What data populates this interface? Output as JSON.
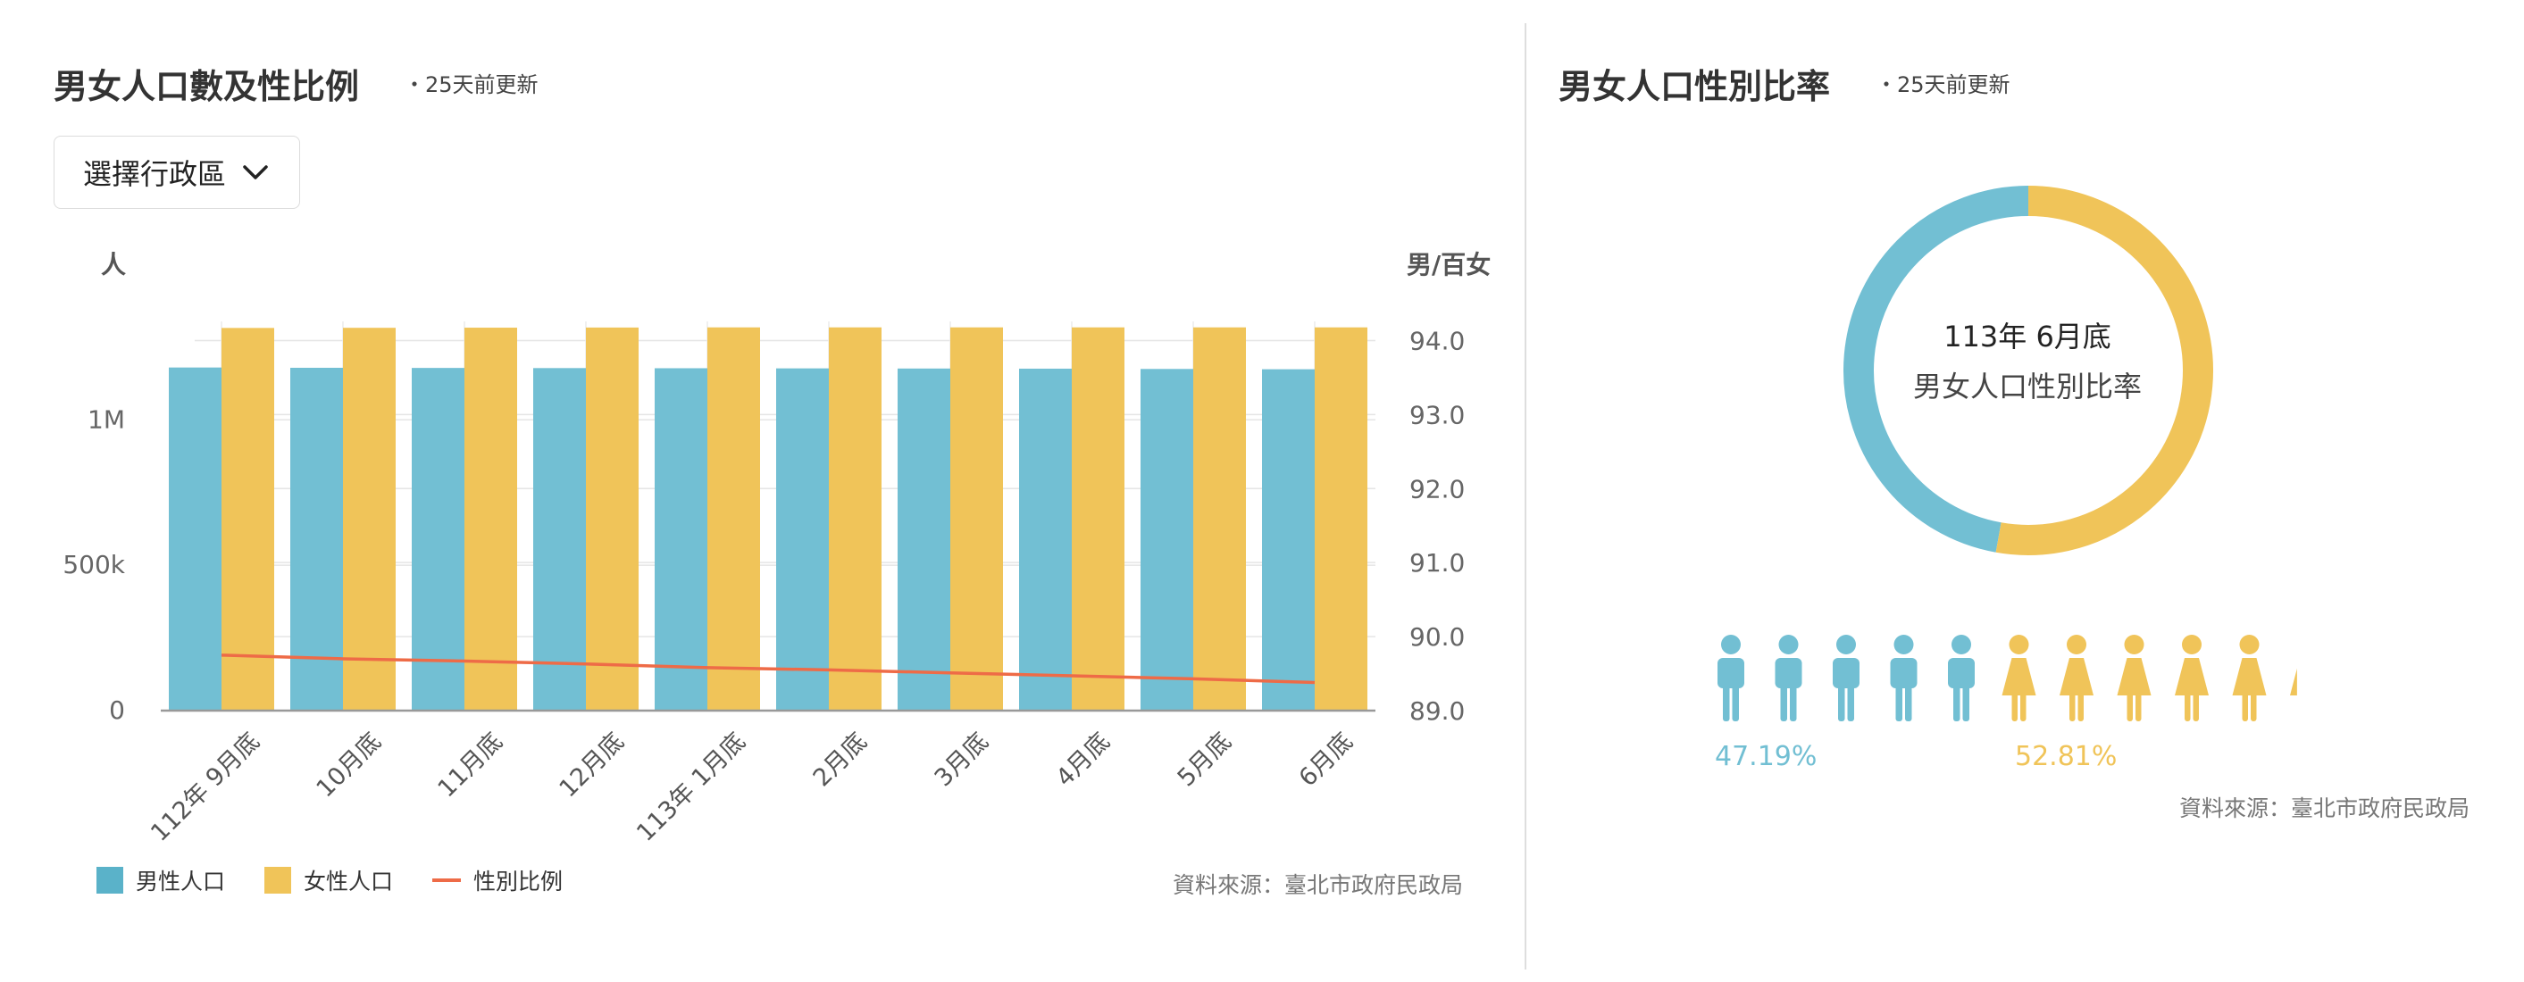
{
  "left_panel": {
    "title": "男女人口數及性比例",
    "updated": "・25天前更新",
    "district_select": {
      "label": "選擇行政區"
    },
    "left_axis_unit": "人",
    "right_axis_unit": "男/百女",
    "legend": {
      "male": "男性人口",
      "female": "女性人口",
      "ratio": "性別比例"
    },
    "source": "資料來源：臺北市政府民政局"
  },
  "right_panel": {
    "title": "男女人口性別比率",
    "updated": "・25天前更新",
    "center_line1": "113年 6月底",
    "center_line2": "男女人口性別比率",
    "male_percent_text": "47.19%",
    "female_percent_text": "52.81%",
    "source": "資料來源：臺北市政府民政局"
  },
  "colors": {
    "male": "#72bfd3",
    "female": "#f0c459",
    "ratio_line": "#ee6b47"
  },
  "chart_data": [
    {
      "type": "bar",
      "categories": [
        "112年 9月底",
        "10月底",
        "11月底",
        "12月底",
        "113年 1月底",
        "2月底",
        "3月底",
        "4月底",
        "5月底",
        "6月底"
      ],
      "series": [
        {
          "name": "男性人口",
          "type": "bar",
          "axis": "left",
          "values": [
            1180000,
            1179000,
            1178500,
            1178000,
            1177500,
            1177000,
            1176500,
            1176000,
            1175000,
            1174000
          ]
        },
        {
          "name": "女性人口",
          "type": "bar",
          "axis": "left",
          "values": [
            1316000,
            1316500,
            1317000,
            1317500,
            1318000,
            1318000,
            1318000,
            1318000,
            1318000,
            1318000
          ]
        },
        {
          "name": "性別比例",
          "type": "line",
          "axis": "right",
          "values": [
            89.75,
            89.7,
            89.67,
            89.63,
            89.58,
            89.55,
            89.51,
            89.47,
            89.43,
            89.38
          ]
        }
      ],
      "left_axis": {
        "unit": "人",
        "ticks": [
          0,
          500000,
          1000000
        ],
        "tick_labels": [
          "0",
          "500k",
          "1M"
        ],
        "ylim": [
          0,
          1400000
        ]
      },
      "right_axis": {
        "unit": "男/百女",
        "ticks": [
          89.0,
          90.0,
          91.0,
          92.0,
          93.0,
          94.0
        ],
        "tick_labels": [
          "89.0",
          "90.0",
          "91.0",
          "92.0",
          "93.0",
          "94.0"
        ],
        "ylim": [
          89.0,
          94.5
        ]
      },
      "grid": true,
      "legend_position": "bottom-left"
    },
    {
      "type": "pie",
      "title": "男女人口性別比率",
      "labels": [
        "男性",
        "女性"
      ],
      "values": [
        47.19,
        52.81
      ],
      "donut": true
    }
  ]
}
